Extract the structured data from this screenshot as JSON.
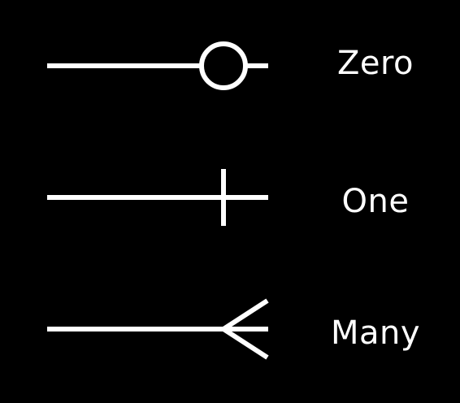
{
  "colors": {
    "background": "#000000",
    "foreground": "#ffffff"
  },
  "legend": [
    {
      "symbol": "circle-icon",
      "label": "Zero"
    },
    {
      "symbol": "bar-icon",
      "label": "One"
    },
    {
      "symbol": "crows-foot-icon",
      "label": "Many"
    }
  ]
}
